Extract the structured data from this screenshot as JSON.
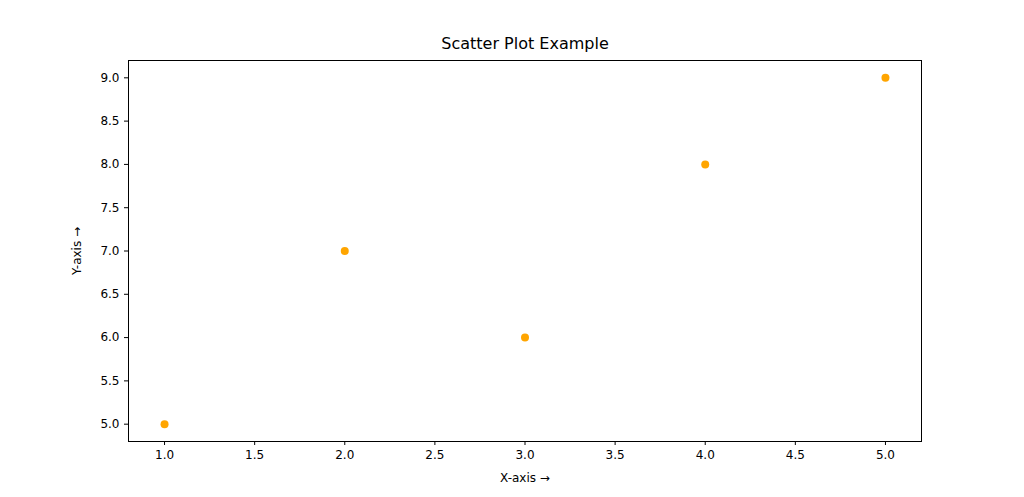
{
  "chart_data": {
    "type": "scatter",
    "title": "Scatter Plot Example",
    "x_label": "X-axis",
    "y_label": "Y-axis",
    "x": [
      1,
      2,
      3,
      4,
      5
    ],
    "values": [
      5,
      7,
      6,
      8,
      9
    ],
    "color": "#ffa500",
    "marker": "circle",
    "xlim": [
      0.8,
      5.2
    ],
    "ylim": [
      4.8,
      9.2
    ],
    "xticks": [
      {
        "value": 1,
        "label": "1.0"
      },
      {
        "value": 1.5,
        "label": "1.5"
      },
      {
        "value": 2,
        "label": "2.0"
      },
      {
        "value": 2.5,
        "label": "2.5"
      },
      {
        "value": 3,
        "label": "3.0"
      },
      {
        "value": 3.5,
        "label": "3.5"
      },
      {
        "value": 4,
        "label": "4.0"
      },
      {
        "value": 4.5,
        "label": "4.5"
      },
      {
        "value": 5,
        "label": "5.0"
      }
    ],
    "yticks": [
      {
        "value": 5,
        "label": "5.0"
      },
      {
        "value": 5.5,
        "label": "5.5"
      },
      {
        "value": 6,
        "label": "6.0"
      },
      {
        "value": 6.5,
        "label": "6.5"
      },
      {
        "value": 7,
        "label": "7.0"
      },
      {
        "value": 7.5,
        "label": "7.5"
      },
      {
        "value": 8,
        "label": "8.0"
      },
      {
        "value": 8.5,
        "label": "8.5"
      },
      {
        "value": 9,
        "label": "9.0"
      }
    ],
    "grid": false
  }
}
